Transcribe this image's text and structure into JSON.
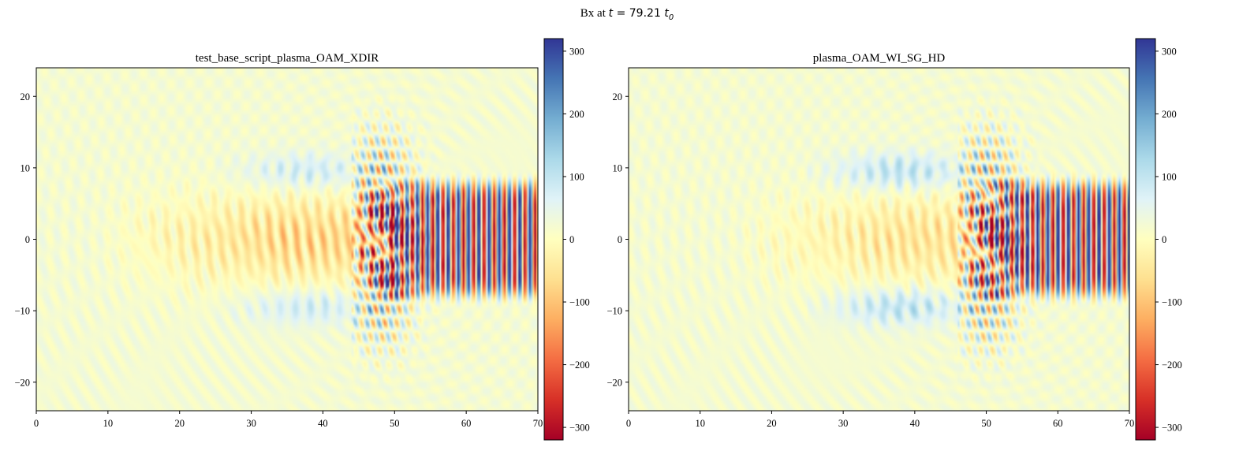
{
  "figure": {
    "suptitle_prefix": "Bx at ",
    "suptitle_var": "t",
    "suptitle_eq": " = 79.21 ",
    "suptitle_unit": "t",
    "suptitle_sub": "0"
  },
  "colors": {
    "colormap": "RdYlBu",
    "stops": [
      "#a50026",
      "#d73027",
      "#f46d43",
      "#fdae61",
      "#fee090",
      "#ffffbf",
      "#e0f3f8",
      "#abd9e9",
      "#74add1",
      "#4575b4",
      "#313695"
    ]
  },
  "chart_data": [
    {
      "type": "heatmap",
      "title": "test_base_script_plasma_OAM_XDIR",
      "xlabel": "",
      "ylabel": "",
      "xlim": [
        0,
        70
      ],
      "ylim": [
        -24,
        24
      ],
      "x_ticks": [
        0,
        10,
        20,
        30,
        40,
        50,
        60,
        70
      ],
      "y_ticks": [
        -20,
        -10,
        0,
        10,
        20
      ],
      "colorbar": {
        "vmin": -320,
        "vmax": 320,
        "ticks": [
          -300,
          -200,
          -100,
          0,
          100,
          200,
          300
        ]
      },
      "field": {
        "beam_start_x": 48,
        "beam_half_width": 8,
        "beam_amplitude": 330,
        "wake_x": [
          8,
          48
        ],
        "wake_amplitude": -140,
        "lobes_y": 9.5,
        "lobe_amplitude": 60
      }
    },
    {
      "type": "heatmap",
      "title": "plasma_OAM_WI_SG_HD",
      "xlabel": "",
      "ylabel": "",
      "xlim": [
        0,
        70
      ],
      "ylim": [
        -24,
        24
      ],
      "x_ticks": [
        0,
        10,
        20,
        30,
        40,
        50,
        60,
        70
      ],
      "y_ticks": [
        -20,
        -10,
        0,
        10,
        20
      ],
      "colorbar": {
        "vmin": -320,
        "vmax": 320,
        "ticks": [
          -300,
          -200,
          -100,
          0,
          100,
          200,
          300
        ]
      },
      "field": {
        "beam_start_x": 50,
        "beam_half_width": 8,
        "beam_amplitude": 330,
        "wake_x": [
          14,
          50
        ],
        "wake_amplitude": -110,
        "lobes_y": 9.5,
        "lobe_amplitude": 80
      }
    }
  ]
}
